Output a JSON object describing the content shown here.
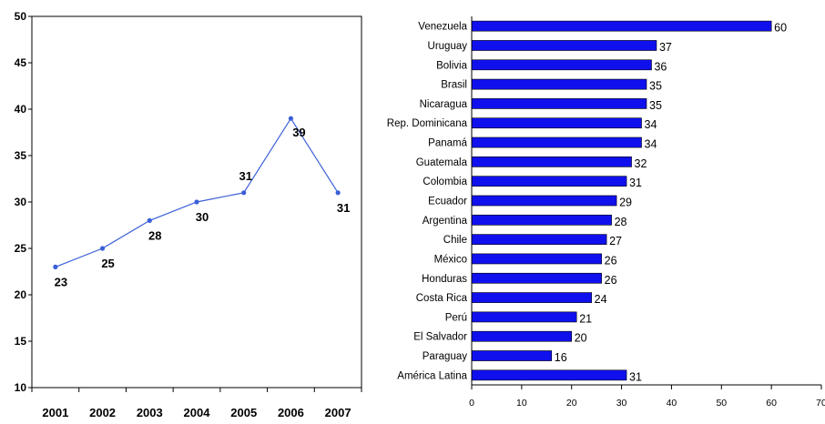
{
  "colors": {
    "line": "#3a5fd8",
    "bar": "#1010ee",
    "axis": "#000000"
  },
  "chart_data": [
    {
      "type": "line",
      "x": [
        "2001",
        "2002",
        "2003",
        "2004",
        "2005",
        "2006",
        "2007"
      ],
      "series": [
        {
          "values": [
            23,
            25,
            28,
            30,
            31,
            39,
            31
          ]
        }
      ],
      "data_labels": [
        "23",
        "25",
        "28",
        "30",
        "31",
        "39",
        "31"
      ],
      "yticks": [
        "10",
        "15",
        "20",
        "25",
        "30",
        "35",
        "40",
        "45",
        "50"
      ],
      "ylim": [
        10,
        50
      ],
      "grid": false,
      "title": "",
      "xlabel": "",
      "ylabel": ""
    },
    {
      "type": "bar",
      "orientation": "horizontal",
      "categories": [
        "Venezuela",
        "Uruguay",
        "Bolivia",
        "Brasil",
        "Nicaragua",
        "Rep. Dominicana",
        "Panamá",
        "Guatemala",
        "Colombia",
        "Ecuador",
        "Argentina",
        "Chile",
        "México",
        "Honduras",
        "Costa Rica",
        "Perú",
        "El Salvador",
        "Paraguay",
        "América Latina"
      ],
      "values": [
        60,
        37,
        36,
        35,
        35,
        34,
        34,
        32,
        31,
        29,
        28,
        27,
        26,
        26,
        24,
        21,
        20,
        16,
        31
      ],
      "value_labels": [
        "60",
        "37",
        "36",
        "35",
        "35",
        "34",
        "34",
        "32",
        "31",
        "29",
        "28",
        "27",
        "26",
        "26",
        "24",
        "21",
        "20",
        "16",
        "31"
      ],
      "xticks": [
        "0",
        "10",
        "20",
        "30",
        "40",
        "50",
        "60",
        "70"
      ],
      "xlim": [
        0,
        70
      ],
      "grid": false,
      "title": "",
      "xlabel": "",
      "ylabel": ""
    }
  ]
}
